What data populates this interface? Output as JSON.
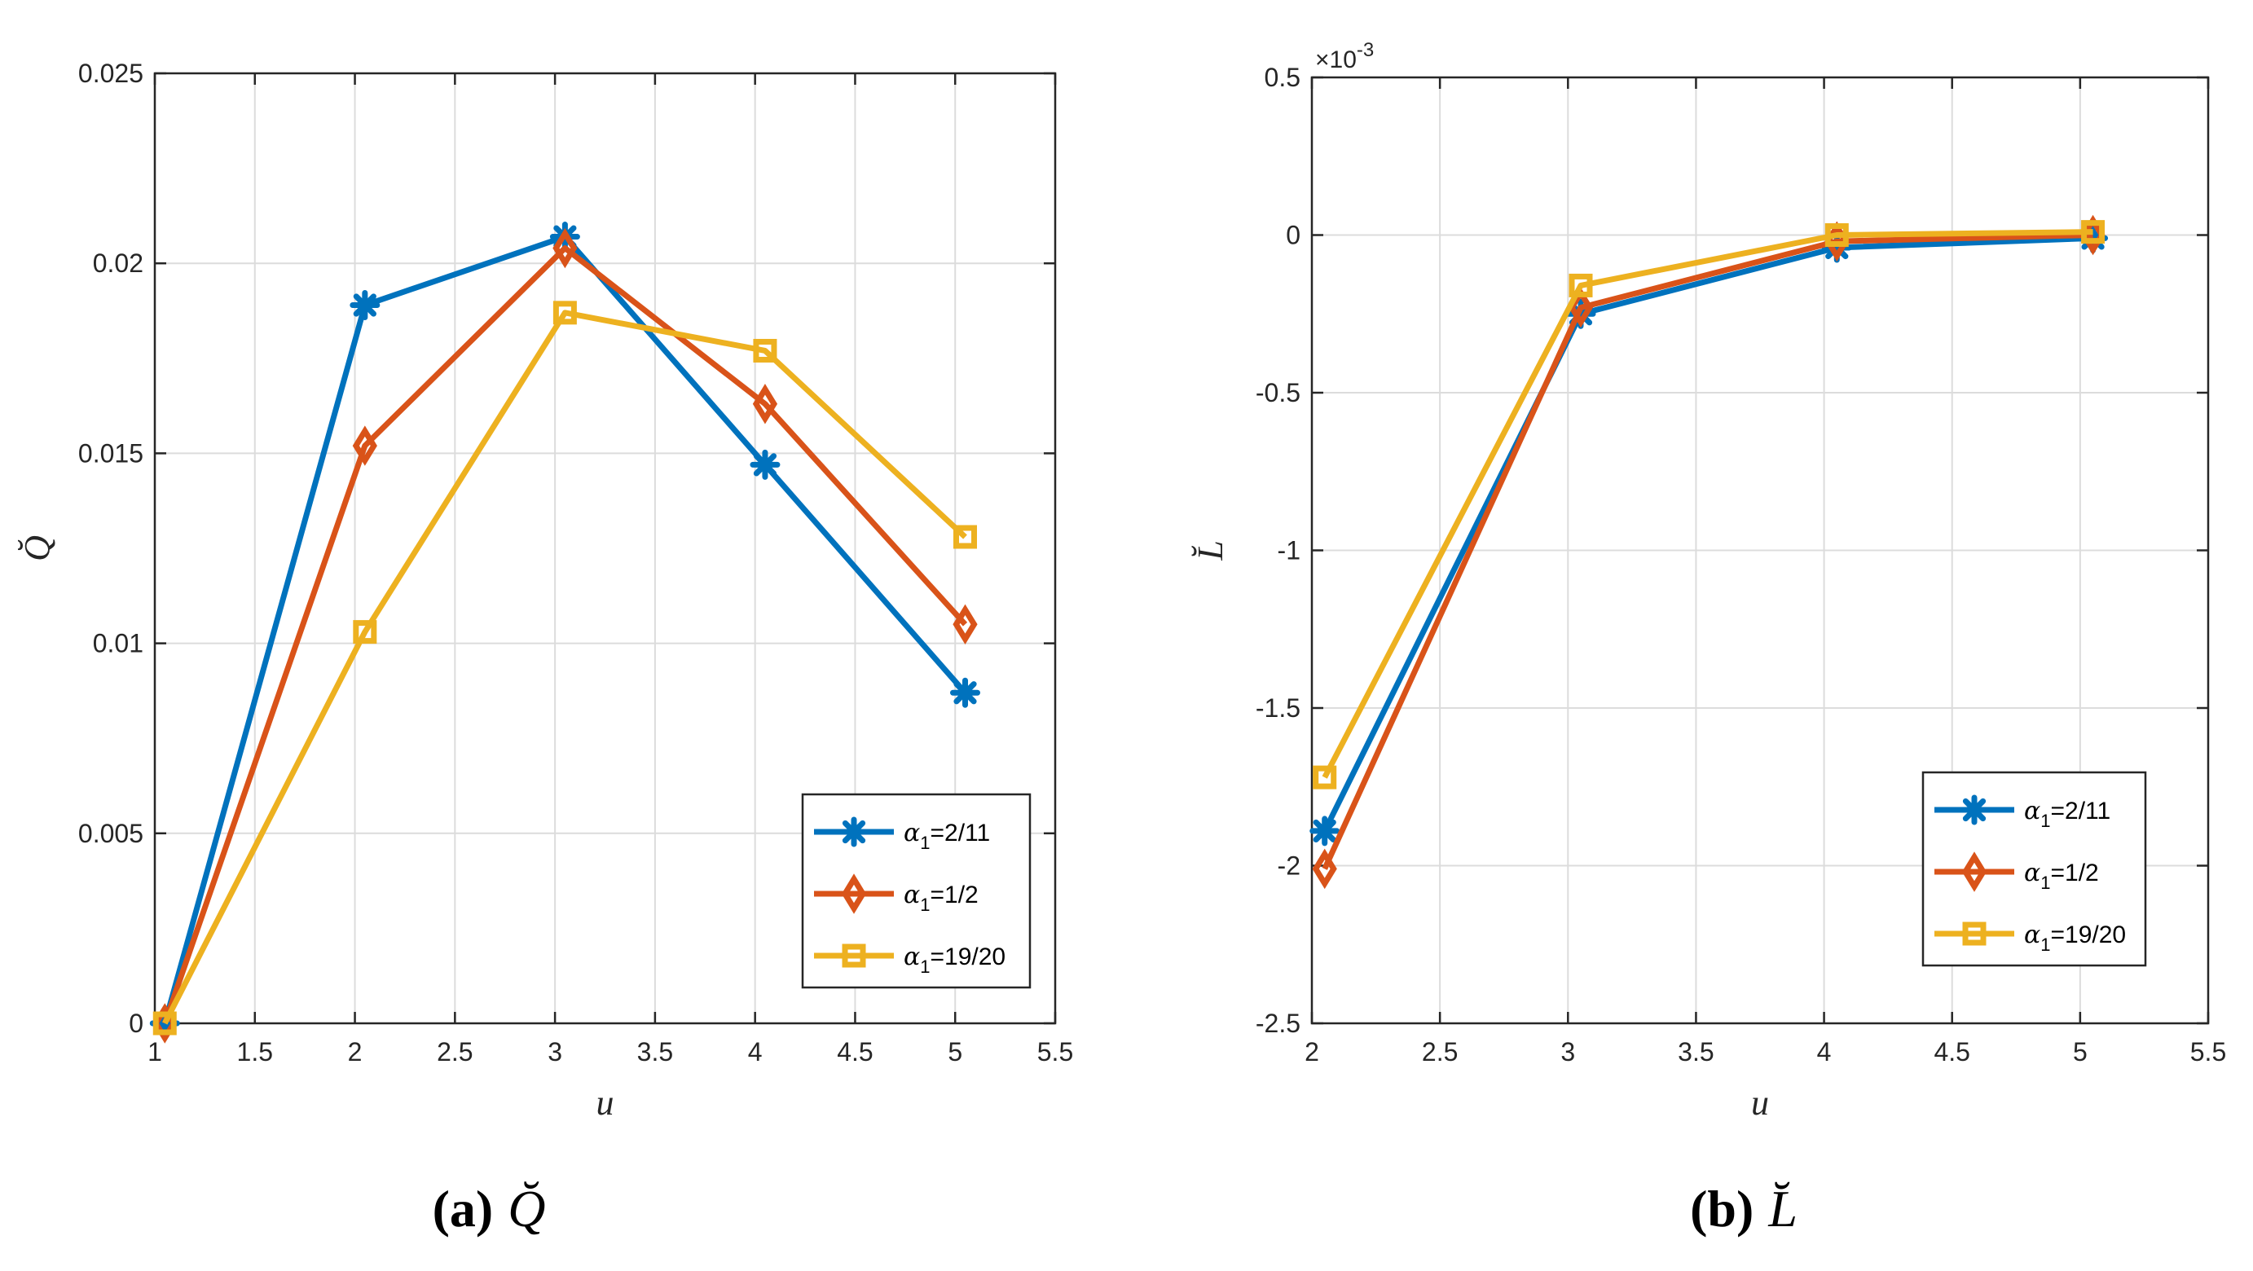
{
  "colors": {
    "blue": "#0072BD",
    "orange": "#D95319",
    "yellow": "#EDB120",
    "grid": "#dcdcdc",
    "axis": "#262626"
  },
  "legend": [
    {
      "prefix": "α",
      "sub": "1",
      "suffix": "=2/11",
      "marker": "asterisk"
    },
    {
      "prefix": "α",
      "sub": "1",
      "suffix": "=1/2",
      "marker": "diamond"
    },
    {
      "prefix": "α",
      "sub": "1",
      "suffix": "=19/20",
      "marker": "square"
    }
  ],
  "chart_data": [
    {
      "type": "line",
      "caption": {
        "label": "(a)",
        "symbol": "Q̆"
      },
      "xlabel": "u",
      "ylabel": "Q̆",
      "xlim": [
        1,
        5.5
      ],
      "ylim": [
        0,
        0.025
      ],
      "xticks": [
        1,
        1.5,
        2,
        2.5,
        3,
        3.5,
        4,
        4.5,
        5,
        5.5
      ],
      "xtick_labels": [
        "1",
        "1.5",
        "2",
        "2.5",
        "3",
        "3.5",
        "4",
        "4.5",
        "5",
        "5.5"
      ],
      "yticks": [
        0,
        0.005,
        0.01,
        0.015,
        0.02,
        0.025
      ],
      "ytick_labels": [
        "0",
        "0.005",
        "0.01",
        "0.015",
        "0.02",
        "0.025"
      ],
      "x": [
        1.05,
        2.05,
        3.05,
        4.05,
        5.05
      ],
      "series": [
        {
          "name": "α1=2/11",
          "values": [
            0,
            0.0189,
            0.0207,
            0.0147,
            0.0087
          ]
        },
        {
          "name": "α1=1/2",
          "values": [
            0,
            0.0152,
            0.0204,
            0.0163,
            0.0105
          ]
        },
        {
          "name": "α1=19/20",
          "values": [
            0,
            0.0103,
            0.0187,
            0.0177,
            0.0128
          ]
        }
      ],
      "grid": true,
      "legend_position": "bottom-right"
    },
    {
      "type": "line",
      "caption": {
        "label": "(b)",
        "symbol": "L̆"
      },
      "xlabel": "u",
      "ylabel": "L̆",
      "exponent": "×10",
      "exponent_power": "-3",
      "xlim": [
        2,
        5.5
      ],
      "ylim": [
        -2.5,
        0.5
      ],
      "xticks": [
        2,
        2.5,
        3,
        3.5,
        4,
        4.5,
        5,
        5.5
      ],
      "xtick_labels": [
        "2",
        "2.5",
        "3",
        "3.5",
        "4",
        "4.5",
        "5",
        "5.5"
      ],
      "yticks": [
        -2.5,
        -2,
        -1.5,
        -1,
        -0.5,
        0,
        0.5
      ],
      "ytick_labels": [
        "-2.5",
        "-2",
        "-1.5",
        "-1",
        "-0.5",
        "0",
        "0.5"
      ],
      "x": [
        2.05,
        3.05,
        4.05,
        5.05
      ],
      "series": [
        {
          "name": "α1=2/11",
          "values": [
            -1.89,
            -0.25,
            -0.04,
            -0.01
          ]
        },
        {
          "name": "α1=1/2",
          "values": [
            -2.01,
            -0.23,
            -0.02,
            0.0
          ]
        },
        {
          "name": "α1=19/20",
          "values": [
            -1.72,
            -0.16,
            0.0,
            0.01
          ]
        }
      ],
      "grid": true,
      "legend_position": "bottom-right"
    }
  ]
}
